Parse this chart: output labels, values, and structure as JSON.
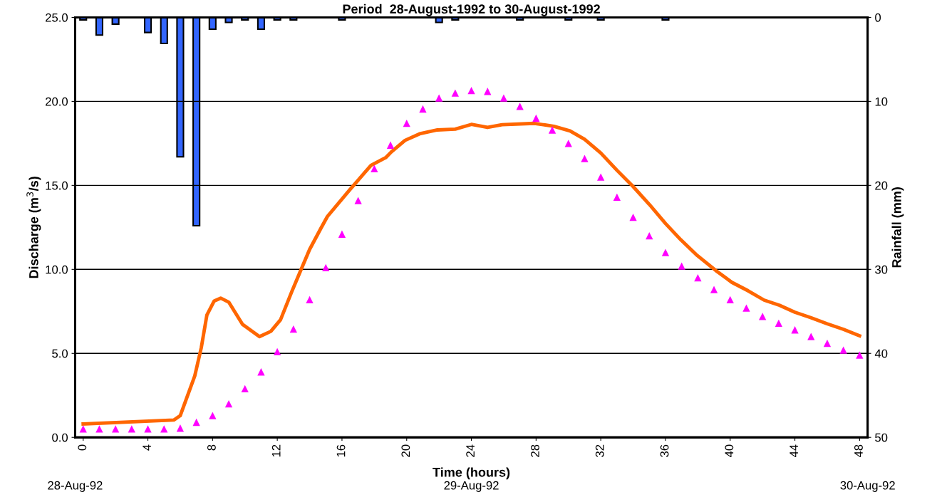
{
  "chart_data": {
    "type": "line",
    "title": "Period  28-August-1992 to 30-August-1992",
    "xlabel": "Time (hours)",
    "ylabel": "Discharge (m$^{3}$/s)",
    "y2label": "Rainfall (mm)",
    "x": [
      0,
      1,
      2,
      3,
      4,
      5,
      6,
      7,
      8,
      9,
      10,
      11,
      12,
      13,
      14,
      15,
      16,
      17,
      18,
      19,
      20,
      21,
      22,
      23,
      24,
      25,
      26,
      27,
      28,
      29,
      30,
      31,
      32,
      33,
      34,
      35,
      36,
      37,
      38,
      39,
      40,
      41,
      42,
      43,
      44,
      45,
      46,
      47,
      48
    ],
    "xlim": [
      -0.5,
      48.5
    ],
    "xticks": [
      0,
      4,
      8,
      12,
      16,
      20,
      24,
      28,
      32,
      36,
      40,
      44,
      48
    ],
    "ylim": [
      0,
      25
    ],
    "yticks": [
      {
        "value": 0,
        "label": "0.0"
      },
      {
        "value": 5,
        "label": "5.0"
      },
      {
        "value": 10,
        "label": "10.0"
      },
      {
        "value": 15,
        "label": "15.0"
      },
      {
        "value": 20,
        "label": "20.0"
      },
      {
        "value": 25,
        "label": "25.0"
      }
    ],
    "y2lim": [
      50,
      0
    ],
    "y2ticks": [
      0,
      10,
      20,
      30,
      40,
      50
    ],
    "grid": "y",
    "annotations": [
      "28-Aug-92",
      "29-Aug-92",
      "30-Aug-92"
    ],
    "series": [
      {
        "type": "bar",
        "axis": "y2",
        "color": "#3366ff",
        "values": [
          0.3,
          2.1,
          0.8,
          null,
          1.8,
          3.1,
          16.6,
          24.8,
          1.4,
          0.6,
          0.3,
          1.4,
          0.3,
          0.3,
          null,
          null,
          0.3,
          null,
          null,
          null,
          null,
          null,
          0.6,
          0.3,
          null,
          null,
          null,
          0.3,
          null,
          null,
          0.3,
          null,
          0.3,
          null,
          null,
          null,
          0.3,
          null,
          null,
          null,
          null,
          null,
          null,
          null,
          null,
          null,
          null,
          null,
          null
        ]
      },
      {
        "color": "#ff6600",
        "marker": "none",
        "line_style": "solid",
        "x": [
          0,
          5.6,
          6.0,
          6.9,
          7.3,
          7.65,
          8.1,
          8.5,
          9.0,
          9.85,
          10.9,
          11.6,
          12.2,
          12.9,
          13.45,
          14.0,
          14.7,
          15.1,
          16.45,
          17.8,
          18.7,
          19.05,
          19.9,
          20.8,
          21.9,
          23.0,
          24.0,
          25.0,
          25.9,
          27.9,
          29.1,
          30.1,
          31.0,
          32.0,
          33.0,
          34.0,
          35.0,
          36.0,
          36.95,
          37.9,
          39.1,
          40.1,
          41.1,
          42.1,
          43.05,
          44.0,
          45.0,
          46.0,
          47.0,
          48.0
        ],
        "values": [
          0.8,
          1.03,
          1.29,
          3.66,
          5.33,
          7.29,
          8.12,
          8.29,
          8.05,
          6.73,
          6.0,
          6.31,
          7.0,
          8.68,
          9.94,
          11.19,
          12.45,
          13.15,
          14.7,
          16.2,
          16.65,
          16.99,
          17.68,
          18.07,
          18.3,
          18.35,
          18.63,
          18.45,
          18.61,
          18.69,
          18.52,
          18.24,
          17.74,
          16.93,
          15.9,
          14.93,
          13.87,
          12.73,
          11.76,
          10.88,
          9.94,
          9.23,
          8.73,
          8.17,
          7.86,
          7.45,
          7.12,
          6.76,
          6.43,
          6.05
        ]
      },
      {
        "type": "scatter",
        "color": "#ff00ff",
        "marker": "triangle",
        "values": [
          0.5,
          0.5,
          0.5,
          0.5,
          0.5,
          0.5,
          0.55,
          0.9,
          1.3,
          2.0,
          2.9,
          3.9,
          5.1,
          6.45,
          8.2,
          10.1,
          12.1,
          14.1,
          16.0,
          17.4,
          18.7,
          19.55,
          20.2,
          20.5,
          20.65,
          20.6,
          20.2,
          19.7,
          19.0,
          18.3,
          17.5,
          16.6,
          15.5,
          14.3,
          13.1,
          12.0,
          11.0,
          10.2,
          9.5,
          8.8,
          8.2,
          7.7,
          7.2,
          6.8,
          6.4,
          6.0,
          5.6,
          5.2,
          4.9
        ]
      }
    ]
  }
}
